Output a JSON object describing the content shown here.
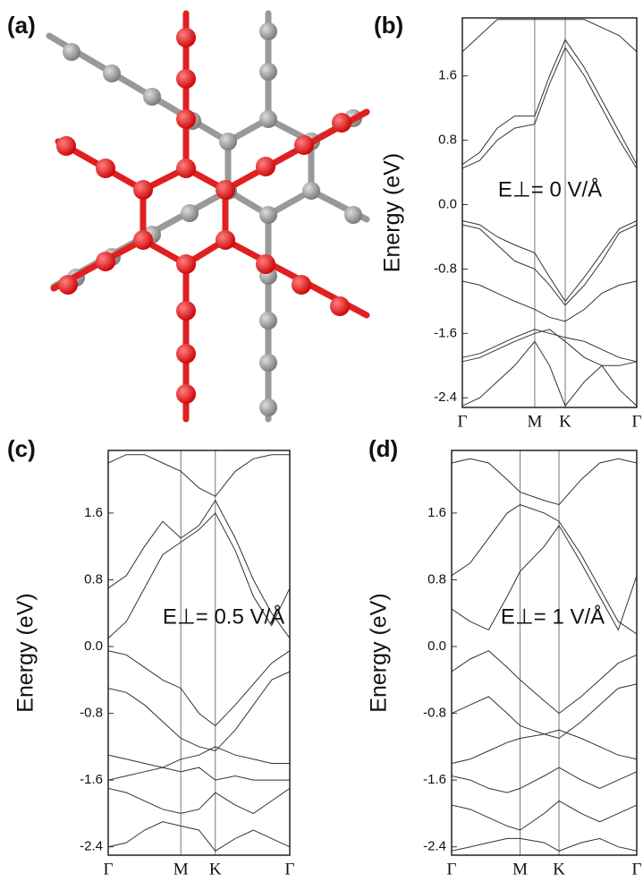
{
  "structure": {
    "label": "(a)"
  },
  "chart_data": [
    {
      "type": "line",
      "label": "(b)",
      "annotation": "E⊥= 0 V/Å",
      "ylabel": "Energy (eV)",
      "color": "#333333",
      "xlim": [
        0,
        1
      ],
      "ylim": [
        -2.52,
        2.32
      ],
      "xticks": [
        {
          "value": 0,
          "label": "Γ"
        },
        {
          "value": 0.415,
          "label": "M"
        },
        {
          "value": 0.59,
          "label": "K"
        },
        {
          "value": 1,
          "label": "Γ"
        }
      ],
      "yticks": [
        -2.4,
        -1.6,
        -0.8,
        {
          "value": 0,
          "label": "0.0"
        },
        0.8,
        1.6
      ],
      "x": [
        0,
        0.1,
        0.2,
        0.3,
        0.415,
        0.5,
        0.59,
        0.7,
        0.8,
        0.9,
        1
      ],
      "series": [
        {
          "values": [
            0.45,
            0.55,
            0.8,
            0.95,
            1.0,
            1.5,
            1.95,
            1.6,
            1.2,
            0.8,
            0.45
          ]
        },
        {
          "values": [
            0.5,
            0.65,
            0.95,
            1.1,
            1.1,
            1.6,
            2.05,
            1.7,
            1.3,
            0.9,
            0.5
          ]
        },
        {
          "values": [
            1.9,
            2.1,
            2.3,
            2.3,
            2.3,
            2.3,
            2.3,
            2.3,
            2.2,
            2.1,
            1.9
          ]
        },
        {
          "values": [
            -0.2,
            -0.25,
            -0.4,
            -0.5,
            -0.6,
            -0.9,
            -1.2,
            -0.9,
            -0.6,
            -0.3,
            -0.2
          ]
        },
        {
          "values": [
            -0.25,
            -0.3,
            -0.5,
            -0.7,
            -0.8,
            -1.0,
            -1.25,
            -1.0,
            -0.7,
            -0.35,
            -0.25
          ]
        },
        {
          "values": [
            -0.95,
            -1.0,
            -1.1,
            -1.2,
            -1.3,
            -1.4,
            -1.45,
            -1.3,
            -1.1,
            -1.0,
            -0.95
          ]
        },
        {
          "values": [
            -1.9,
            -1.85,
            -1.75,
            -1.65,
            -1.55,
            -1.6,
            -1.65,
            -1.7,
            -1.8,
            -1.9,
            -1.95
          ]
        },
        {
          "values": [
            -1.95,
            -1.9,
            -1.8,
            -1.7,
            -1.6,
            -1.55,
            -1.7,
            -1.9,
            -2.0,
            -2.0,
            -1.95
          ]
        },
        {
          "values": [
            -2.5,
            -2.4,
            -2.2,
            -2.0,
            -1.7,
            -2.0,
            -2.5,
            -2.2,
            -2.0,
            -2.3,
            -2.5
          ]
        }
      ]
    },
    {
      "type": "line",
      "label": "(c)",
      "annotation": "E⊥= 0.5 V/Å",
      "ylabel": "Energy (eV)",
      "color": "#333333",
      "xlim": [
        0,
        1
      ],
      "ylim": [
        -2.5,
        2.35
      ],
      "xticks": [
        {
          "value": 0,
          "label": "Γ"
        },
        {
          "value": 0.4,
          "label": "M"
        },
        {
          "value": 0.59,
          "label": "K"
        },
        {
          "value": 1,
          "label": "Γ"
        }
      ],
      "yticks": [
        -2.4,
        -1.6,
        -0.8,
        {
          "value": 0,
          "label": "0.0"
        },
        0.8,
        1.6
      ],
      "x": [
        0,
        0.1,
        0.2,
        0.3,
        0.4,
        0.5,
        0.59,
        0.7,
        0.8,
        0.9,
        1
      ],
      "series": [
        {
          "values": [
            0.7,
            0.85,
            1.2,
            1.5,
            1.3,
            1.45,
            1.75,
            1.3,
            0.8,
            0.4,
            0.1
          ]
        },
        {
          "values": [
            0.1,
            0.3,
            0.7,
            1.1,
            1.25,
            1.4,
            1.6,
            1.15,
            0.6,
            0.25,
            0.7
          ]
        },
        {
          "values": [
            2.2,
            2.3,
            2.3,
            2.2,
            2.1,
            1.9,
            1.8,
            2.1,
            2.25,
            2.3,
            2.3
          ]
        },
        {
          "values": [
            -0.05,
            -0.1,
            -0.25,
            -0.4,
            -0.5,
            -0.8,
            -0.95,
            -0.7,
            -0.45,
            -0.2,
            -0.05
          ]
        },
        {
          "values": [
            -0.5,
            -0.55,
            -0.7,
            -0.9,
            -1.1,
            -1.2,
            -1.25,
            -1.0,
            -0.7,
            -0.4,
            -0.3
          ]
        },
        {
          "values": [
            -1.3,
            -1.35,
            -1.4,
            -1.45,
            -1.35,
            -1.3,
            -1.2,
            -1.3,
            -1.35,
            -1.4,
            -1.4
          ]
        },
        {
          "values": [
            -1.6,
            -1.55,
            -1.5,
            -1.45,
            -1.5,
            -1.45,
            -1.6,
            -1.55,
            -1.6,
            -1.6,
            -1.6
          ]
        },
        {
          "values": [
            -1.7,
            -1.75,
            -1.85,
            -1.95,
            -2.0,
            -1.95,
            -1.75,
            -1.9,
            -2.0,
            -1.85,
            -1.7
          ]
        },
        {
          "values": [
            -2.4,
            -2.35,
            -2.2,
            -2.1,
            -2.15,
            -2.2,
            -2.45,
            -2.3,
            -2.2,
            -2.3,
            -2.4
          ]
        }
      ]
    },
    {
      "type": "line",
      "label": "(d)",
      "annotation": "E⊥= 1 V/Å",
      "ylabel": "Energy (eV)",
      "color": "#333333",
      "xlim": [
        0,
        1
      ],
      "ylim": [
        -2.5,
        2.35
      ],
      "xticks": [
        {
          "value": 0,
          "label": "Γ"
        },
        {
          "value": 0.37,
          "label": "M"
        },
        {
          "value": 0.58,
          "label": "K"
        },
        {
          "value": 1,
          "label": "Γ"
        }
      ],
      "yticks": [
        -2.4,
        -1.6,
        -0.8,
        {
          "value": 0,
          "label": "0.0"
        },
        0.8,
        1.6
      ],
      "x": [
        0,
        0.1,
        0.2,
        0.3,
        0.37,
        0.5,
        0.58,
        0.7,
        0.8,
        0.9,
        1
      ],
      "series": [
        {
          "values": [
            0.85,
            1.0,
            1.3,
            1.6,
            1.7,
            1.6,
            1.5,
            1.1,
            0.7,
            0.3,
            0.15
          ]
        },
        {
          "values": [
            0.45,
            0.3,
            0.2,
            0.6,
            0.9,
            1.2,
            1.45,
            1.0,
            0.6,
            0.2,
            0.85
          ]
        },
        {
          "values": [
            2.2,
            2.25,
            2.2,
            2.0,
            1.85,
            1.75,
            1.7,
            2.0,
            2.2,
            2.25,
            2.2
          ]
        },
        {
          "values": [
            -0.3,
            -0.15,
            -0.05,
            -0.25,
            -0.4,
            -0.65,
            -0.8,
            -0.6,
            -0.4,
            -0.2,
            -0.1
          ]
        },
        {
          "values": [
            -0.8,
            -0.7,
            -0.6,
            -0.8,
            -0.95,
            -1.05,
            -1.1,
            -0.9,
            -0.7,
            -0.5,
            -0.45
          ]
        },
        {
          "values": [
            -1.4,
            -1.35,
            -1.25,
            -1.15,
            -1.1,
            -1.05,
            -1.0,
            -1.1,
            -1.2,
            -1.3,
            -1.35
          ]
        },
        {
          "values": [
            -1.55,
            -1.6,
            -1.7,
            -1.75,
            -1.7,
            -1.55,
            -1.45,
            -1.6,
            -1.7,
            -1.6,
            -1.5
          ]
        },
        {
          "values": [
            -1.9,
            -1.95,
            -2.05,
            -2.15,
            -2.2,
            -2.0,
            -1.85,
            -2.0,
            -2.1,
            -2.0,
            -1.9
          ]
        },
        {
          "values": [
            -2.45,
            -2.4,
            -2.35,
            -2.3,
            -2.3,
            -2.35,
            -2.45,
            -2.35,
            -2.3,
            -2.4,
            -2.45
          ]
        }
      ]
    }
  ]
}
